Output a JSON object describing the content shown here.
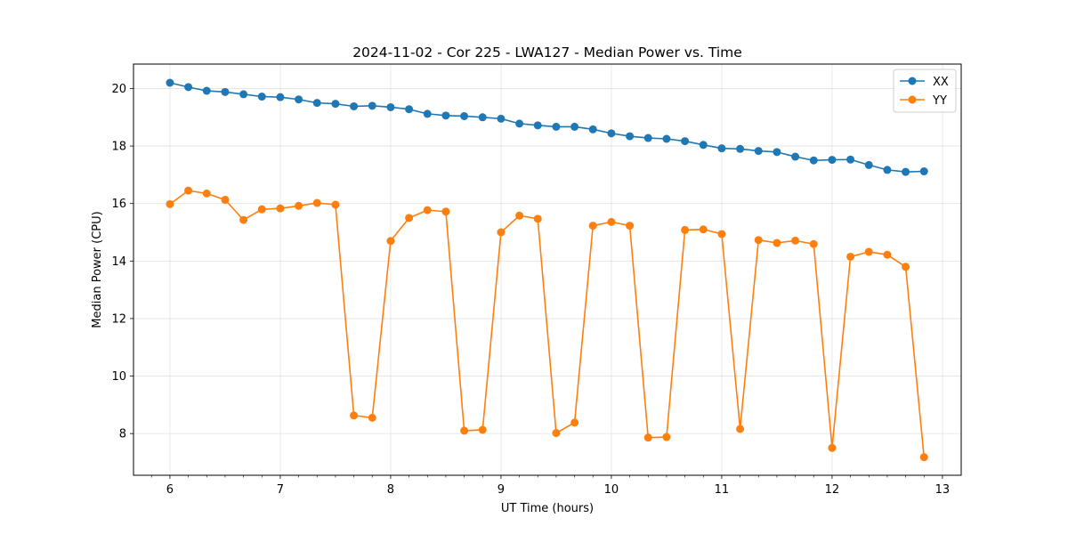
{
  "chart_data": {
    "type": "line",
    "title": "2024-11-02 - Cor 225 - LWA127 - Median Power vs. Time",
    "xlabel": "UT Time (hours)",
    "ylabel": "Median Power (CPU)",
    "xlim": [
      5.67,
      13.17
    ],
    "ylim": [
      6.55,
      20.85
    ],
    "xticks": [
      6,
      7,
      8,
      9,
      10,
      11,
      12,
      13
    ],
    "xtick_labels": [
      "6",
      "7",
      "8",
      "9",
      "10",
      "11",
      "12",
      "13"
    ],
    "yticks": [
      8,
      10,
      12,
      14,
      16,
      18,
      20
    ],
    "ytick_labels": [
      "8",
      "10",
      "12",
      "14",
      "16",
      "18",
      "20"
    ],
    "grid": true,
    "legend_position": "top-right",
    "x": [
      6.0,
      6.1667,
      6.3333,
      6.5,
      6.6667,
      6.8333,
      7.0,
      7.1667,
      7.3333,
      7.5,
      7.6667,
      7.8333,
      8.0,
      8.1667,
      8.3333,
      8.5,
      8.6667,
      8.8333,
      9.0,
      9.1667,
      9.3333,
      9.5,
      9.6667,
      9.8333,
      10.0,
      10.1667,
      10.3333,
      10.5,
      10.6667,
      10.8333,
      11.0,
      11.1667,
      11.3333,
      11.5,
      11.6667,
      11.8333,
      12.0,
      12.1667,
      12.3333,
      12.5,
      12.6667,
      12.8333
    ],
    "series": [
      {
        "name": "XX",
        "color": "#1f77b4",
        "values": [
          20.2,
          20.05,
          19.92,
          19.88,
          19.8,
          19.72,
          19.7,
          19.62,
          19.5,
          19.47,
          19.38,
          19.4,
          19.35,
          19.28,
          19.12,
          19.06,
          19.04,
          19.0,
          18.95,
          18.78,
          18.72,
          18.67,
          18.67,
          18.58,
          18.44,
          18.34,
          18.28,
          18.25,
          18.17,
          18.04,
          17.92,
          17.9,
          17.83,
          17.79,
          17.63,
          17.5,
          17.52,
          17.53,
          17.34,
          17.17,
          17.1,
          17.12
        ]
      },
      {
        "name": "YY",
        "color": "#ff7f0e",
        "values": [
          15.98,
          16.45,
          16.35,
          16.13,
          15.43,
          15.8,
          15.83,
          15.92,
          16.02,
          15.96,
          8.63,
          8.55,
          14.7,
          15.5,
          15.77,
          15.72,
          8.1,
          8.13,
          15.0,
          15.58,
          15.47,
          8.02,
          8.38,
          15.23,
          15.36,
          15.23,
          7.86,
          7.88,
          15.08,
          15.1,
          14.94,
          8.16,
          14.73,
          14.63,
          14.71,
          14.59,
          7.5,
          14.15,
          14.32,
          14.22,
          13.8,
          7.18
        ]
      }
    ]
  }
}
